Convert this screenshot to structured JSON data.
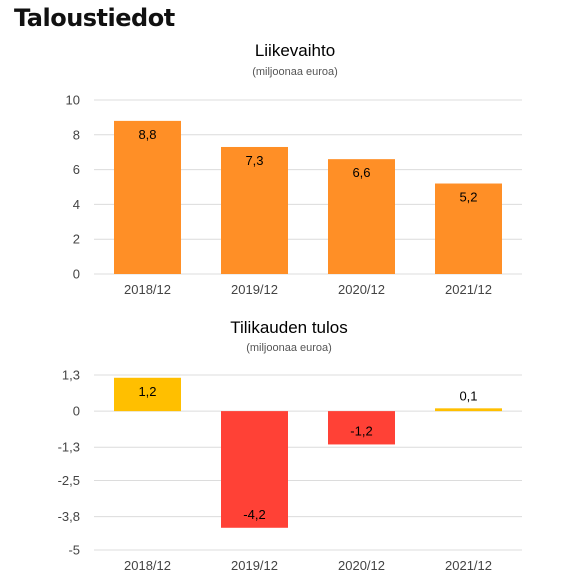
{
  "heading": "Taloustiedot",
  "chart_data": [
    {
      "type": "bar",
      "title": "Liikevaihto",
      "subtitle": "(miljoonaa euroa)",
      "categories": [
        "2018/12",
        "2019/12",
        "2020/12",
        "2021/12"
      ],
      "values": [
        8.8,
        7.3,
        6.6,
        5.2
      ],
      "value_labels": [
        "8,8",
        "7,3",
        "6,6",
        "5,2"
      ],
      "colors": [
        "#ff8f26",
        "#ff8f26",
        "#ff8f26",
        "#ff8f26"
      ],
      "yticks": [
        0,
        2,
        4,
        6,
        8,
        10
      ],
      "ytick_labels": [
        "0",
        "2",
        "4",
        "6",
        "8",
        "10"
      ],
      "ylim": [
        0,
        10
      ],
      "grid": true,
      "xlabel": "",
      "ylabel": ""
    },
    {
      "type": "bar",
      "title": "Tilikauden tulos",
      "subtitle": "(miljoonaa euroa)",
      "categories": [
        "2018/12",
        "2019/12",
        "2020/12",
        "2021/12"
      ],
      "values": [
        1.2,
        -4.2,
        -1.2,
        0.1
      ],
      "value_labels": [
        "1,2",
        "-4,2",
        "-1,2",
        "0,1"
      ],
      "colors": [
        "#ffbf00",
        "#ff4136",
        "#ff4136",
        "#ffbf00"
      ],
      "yticks": [
        1.3,
        0,
        -1.3,
        -2.5,
        -3.8,
        -5
      ],
      "ytick_labels": [
        "1,3",
        "0",
        "-1,3",
        "-2,5",
        "-3,8",
        "-5"
      ],
      "ylim": [
        -5,
        1.3
      ],
      "grid": true,
      "xlabel": "",
      "ylabel": ""
    }
  ]
}
